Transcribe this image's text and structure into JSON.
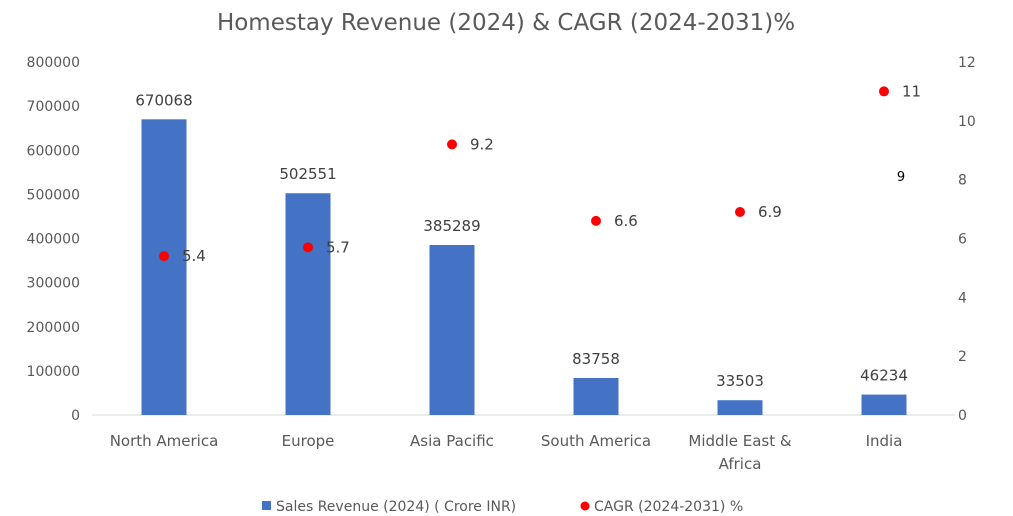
{
  "chart_data": {
    "type": "bar",
    "title": "Homestay Revenue (2024) & CAGR (2024-2031)%",
    "categories": [
      "North America",
      "Europe",
      "Asia Pacific",
      "South America",
      "Middle East & Africa",
      "India"
    ],
    "category_lines": [
      [
        "North America"
      ],
      [
        "Europe"
      ],
      [
        "Asia Pacific"
      ],
      [
        "South America"
      ],
      [
        "Middle East &",
        "Africa"
      ],
      [
        "India"
      ]
    ],
    "series": [
      {
        "name": "Sales Revenue (2024) ( Crore INR)",
        "type": "bar",
        "axis": "left",
        "color": "#4472C4",
        "values": [
          670068,
          502551,
          385289,
          83758,
          33503,
          46234
        ],
        "labels": [
          "670068",
          "502551",
          "385289",
          "83758",
          "33503",
          "46234"
        ]
      },
      {
        "name": "CAGR (2024-2031) %",
        "type": "scatter",
        "axis": "right",
        "color": "#FF0000",
        "values": [
          5.4,
          5.7,
          9.2,
          6.6,
          6.9,
          11
        ],
        "labels": [
          "5.4",
          "5.7",
          "9.2",
          "6.6",
          "6.9",
          "11"
        ]
      }
    ],
    "ylim": [
      0,
      800000
    ],
    "yticks": [
      "0",
      "100000",
      "200000",
      "300000",
      "400000",
      "500000",
      "600000",
      "700000",
      "800000"
    ],
    "y2lim": [
      0,
      12
    ],
    "y2ticks": [
      "0",
      "2",
      "4",
      "6",
      "8",
      "10",
      "12"
    ],
    "annotation": "9",
    "grid": false,
    "legend_position": "bottom"
  }
}
